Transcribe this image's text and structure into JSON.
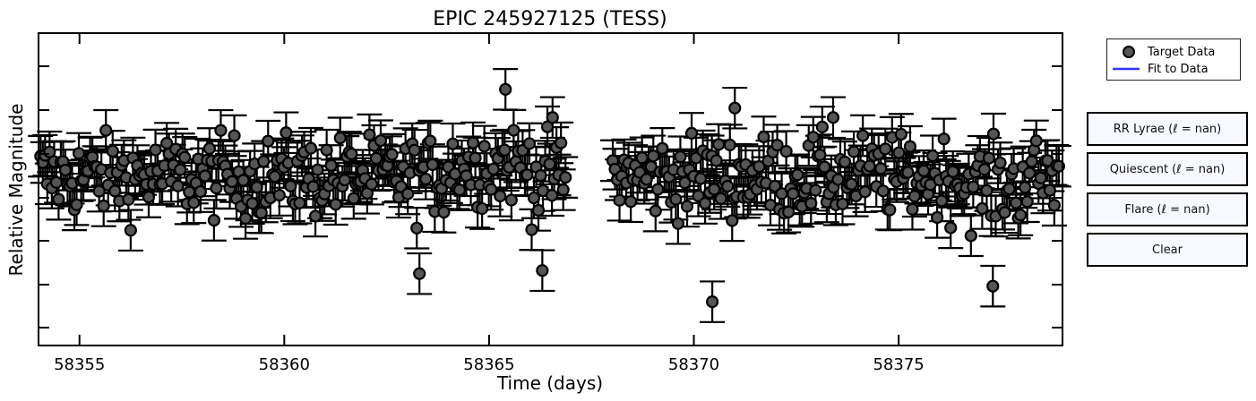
{
  "chart_data": {
    "type": "scatter",
    "title": "EPIC 245927125 (TESS)",
    "xlabel": "Time (days)",
    "ylabel": "Relative Magnitude",
    "xlim": [
      58354,
      58379
    ],
    "ylim": [
      0,
      1
    ],
    "xticks": [
      58355,
      58360,
      58365,
      58370,
      58375
    ],
    "xtick_labels": [
      "58355",
      "58360",
      "58365",
      "58370",
      "58375"
    ],
    "y_inverted": true,
    "y_tick_labels_shown": false,
    "grid": false,
    "legend_position": "top-right-outside",
    "series": [
      {
        "name": "Target Data",
        "style": "points-with-errorbars",
        "color": "#555555",
        "edge": "#000000"
      },
      {
        "name": "Fit to Data",
        "style": "line",
        "color": "#3333ff"
      }
    ],
    "gap": [
      58366.9,
      58368.0
    ],
    "points": [
      {
        "x": 58365.4,
        "y": 0.82
      },
      {
        "x": 58366.55,
        "y": 0.73
      },
      {
        "x": 58371.0,
        "y": 0.76
      },
      {
        "x": 58373.4,
        "y": 0.73
      },
      {
        "x": 58366.3,
        "y": 0.24
      },
      {
        "x": 58370.45,
        "y": 0.14
      },
      {
        "x": 58363.3,
        "y": 0.23
      },
      {
        "x": 58377.3,
        "y": 0.19
      }
    ]
  },
  "legend": {
    "target_label": "Target Data",
    "fit_label": "Fit to Data"
  },
  "buttons": {
    "rr_lyrae": "RR Lyrae (ℓ = nan)",
    "quiescent": "Quiescent (ℓ = nan)",
    "flare": "Flare (ℓ = nan)",
    "clear": "Clear"
  }
}
